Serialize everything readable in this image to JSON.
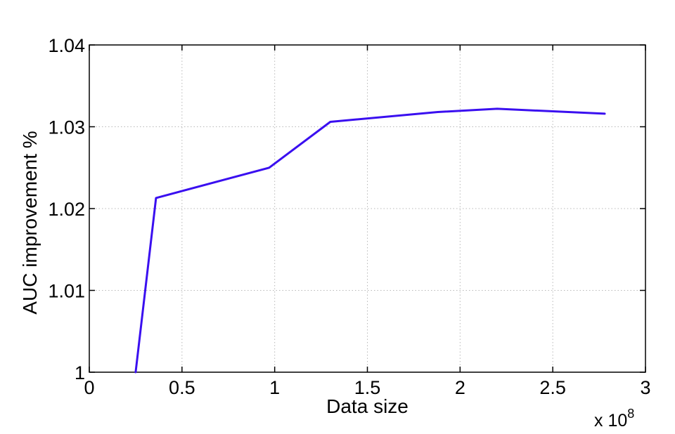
{
  "chart_data": {
    "type": "line",
    "xlabel": "Data size",
    "ylabel": "AUC improvement %",
    "x_multiplier": {
      "base": "x 10",
      "exponent": "8"
    },
    "xlim": [
      0,
      3
    ],
    "ylim": [
      1,
      1.04
    ],
    "grid": true,
    "x_ticks": [
      0,
      0.5,
      1,
      1.5,
      2,
      2.5,
      3
    ],
    "x_tick_labels": [
      "0",
      "0.5",
      "1",
      "1.5",
      "2",
      "2.5",
      "3"
    ],
    "y_ticks": [
      1,
      1.01,
      1.02,
      1.03,
      1.04
    ],
    "y_tick_labels": [
      "1",
      "1.01",
      "1.02",
      "1.03",
      "1.04"
    ],
    "series": [
      {
        "color": "#3a0ff0",
        "x": [
          0.25,
          0.36,
          0.97,
          1.3,
          1.88,
          2.2,
          2.78
        ],
        "y": [
          1.0,
          1.0213,
          1.025,
          1.0306,
          1.0318,
          1.0322,
          1.0316
        ]
      }
    ]
  }
}
